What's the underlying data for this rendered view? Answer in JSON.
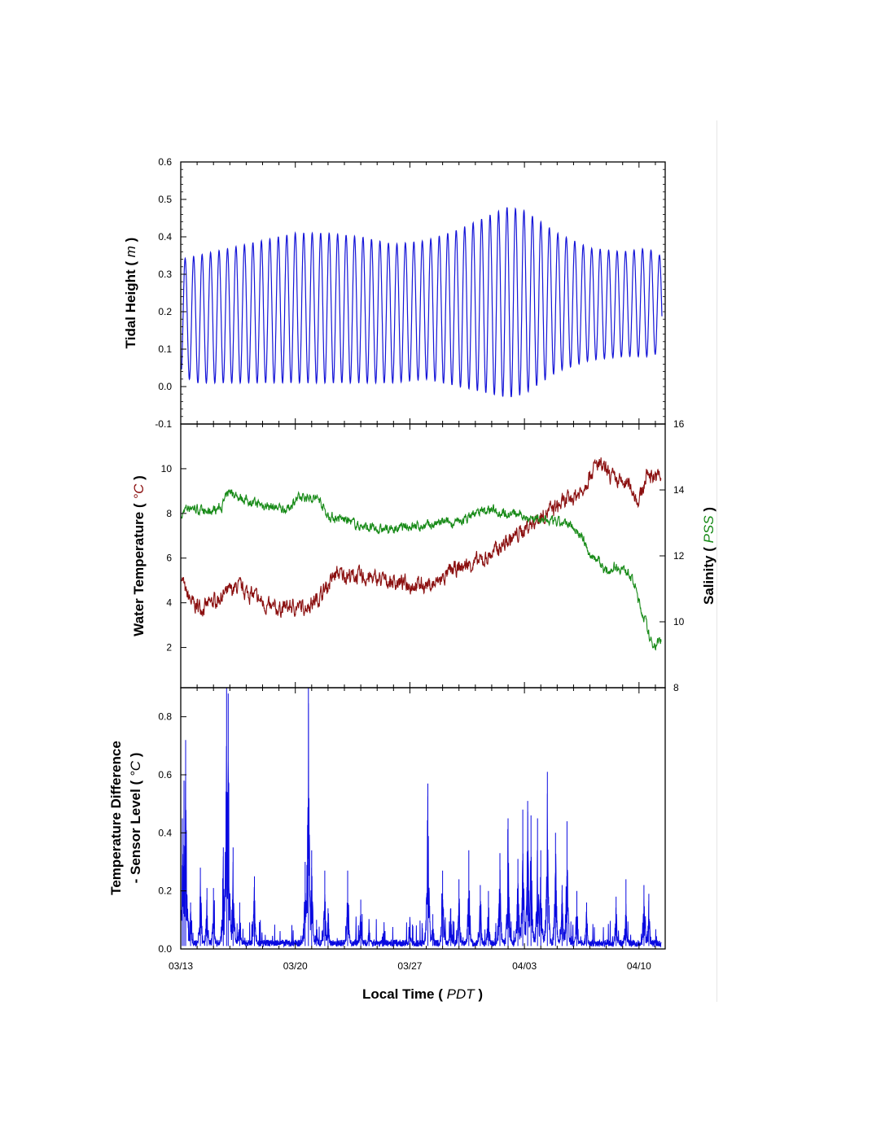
{
  "colors": {
    "tide": "#1414d8",
    "temperature": "#8b1010",
    "salinity": "#178a17",
    "temp_diff": "#0a0ae0",
    "axis": "#000000"
  },
  "x_axis": {
    "title": "Local Time",
    "unit": "PDT",
    "range_days": [
      0,
      29.6
    ],
    "ticks": [
      {
        "label": "03/13",
        "day": 0
      },
      {
        "label": "03/20",
        "day": 7
      },
      {
        "label": "03/27",
        "day": 14
      },
      {
        "label": "04/03",
        "day": 21
      },
      {
        "label": "04/10",
        "day": 28
      }
    ]
  },
  "chart_data": [
    {
      "type": "line",
      "panel": "top",
      "ylabel": "Tidal Height",
      "yunit": "m",
      "ylim": [
        -0.1,
        0.6
      ],
      "yticks": [
        "0.6",
        "0.5",
        "0.4",
        "0.3",
        "0.2",
        "0.1",
        "0.0",
        "-0.1"
      ],
      "ytick_values": [
        0.6,
        0.5,
        0.4,
        0.3,
        0.2,
        0.1,
        0.0,
        -0.1
      ],
      "series": [
        {
          "color_key": "tide",
          "oscillation": "semidiurnal",
          "period_hours": 12.42,
          "envelope_day": [
            0,
            1,
            3,
            5,
            7,
            9,
            11,
            13,
            15,
            17,
            18,
            19,
            20,
            21,
            22,
            23,
            25,
            27,
            28.5,
            29.3
          ],
          "envelope_max": [
            0.34,
            0.35,
            0.37,
            0.39,
            0.41,
            0.41,
            0.4,
            0.38,
            0.39,
            0.42,
            0.44,
            0.46,
            0.48,
            0.47,
            0.44,
            0.41,
            0.37,
            0.36,
            0.37,
            0.35
          ],
          "envelope_min": [
            0.03,
            0.01,
            0.01,
            0.01,
            0.01,
            0.01,
            0.01,
            0.01,
            0.02,
            0.0,
            -0.01,
            -0.02,
            -0.03,
            -0.02,
            0.01,
            0.04,
            0.07,
            0.08,
            0.08,
            0.09
          ]
        }
      ]
    },
    {
      "type": "line",
      "panel": "middle",
      "ylabel": "Water Temperature",
      "yunit": "°C",
      "ylim": [
        0.2,
        12
      ],
      "yticks": [
        "2",
        "4",
        "6",
        "8",
        "10"
      ],
      "ytick_values": [
        2,
        4,
        6,
        8,
        10
      ],
      "y2label": "Salinity",
      "y2unit": "PSS",
      "y2lim": [
        8,
        16
      ],
      "y2ticks": [
        "8",
        "10",
        "12",
        "14",
        "16"
      ],
      "y2tick_values": [
        8,
        10,
        12,
        14,
        16
      ],
      "series": [
        {
          "color_key": "temperature",
          "axis": "left",
          "x": [
            0,
            0.3,
            0.8,
            1.5,
            2.5,
            3.5,
            4.5,
            5.5,
            6.5,
            7.5,
            8.0,
            8.5,
            9.0,
            9.5,
            10.5,
            11.5,
            12.5,
            13.5,
            14.5,
            15.5,
            16.5,
            17.5,
            18.5,
            19.5,
            20.5,
            21.5,
            22.5,
            23.5,
            24.5,
            25.0,
            25.5,
            26.5,
            27.5,
            28.0,
            28.5,
            29.3
          ],
          "y": [
            5.5,
            4.4,
            3.9,
            3.8,
            4.3,
            4.7,
            4.3,
            3.7,
            3.8,
            3.8,
            4.0,
            4.3,
            4.8,
            5.3,
            5.2,
            5.1,
            5.0,
            4.9,
            4.8,
            4.8,
            5.4,
            5.7,
            5.9,
            6.5,
            7.0,
            7.6,
            8.1,
            8.5,
            9.0,
            9.8,
            10.2,
            9.5,
            9.2,
            8.5,
            9.8,
            9.6
          ]
        },
        {
          "color_key": "salinity",
          "axis": "right",
          "x": [
            0,
            0.2,
            0.6,
            1.5,
            2.5,
            3.0,
            3.5,
            4.5,
            5.5,
            6.5,
            7.0,
            7.8,
            8.5,
            9.0,
            10.0,
            11.0,
            12.0,
            13.0,
            14.0,
            15.0,
            16.0,
            17.0,
            18.0,
            19.0,
            20.0,
            21.0,
            22.0,
            23.0,
            24.0,
            24.6,
            25.0,
            25.5,
            26.0,
            26.5,
            27.0,
            27.4,
            27.8,
            28.1,
            28.4,
            28.7,
            29.0,
            29.3
          ],
          "y": [
            13.0,
            13.4,
            13.5,
            13.3,
            13.5,
            14.0,
            13.8,
            13.6,
            13.5,
            13.4,
            13.7,
            13.8,
            13.7,
            13.2,
            13.1,
            12.9,
            12.8,
            12.8,
            12.9,
            12.9,
            13.0,
            13.0,
            13.3,
            13.4,
            13.3,
            13.2,
            13.1,
            13.0,
            12.9,
            12.5,
            12.0,
            11.9,
            11.5,
            11.7,
            11.6,
            11.5,
            11.0,
            10.4,
            10.0,
            9.4,
            9.3,
            9.5
          ]
        }
      ]
    },
    {
      "type": "line",
      "panel": "bottom",
      "ylabel": "Temperature Difference",
      "ylabel_line2": "- Sensor Level",
      "yunit": "°C",
      "ylim": [
        0,
        0.9
      ],
      "yticks": [
        "0.0",
        "0.2",
        "0.4",
        "0.6",
        "0.8"
      ],
      "ytick_values": [
        0,
        0.2,
        0.4,
        0.6,
        0.8
      ],
      "series": [
        {
          "color_key": "temp_diff",
          "baseline": 0.02,
          "spikes_day": [
            0.1,
            0.2,
            0.3,
            0.6,
            1.2,
            1.6,
            2.0,
            2.6,
            2.8,
            2.9,
            3.2,
            3.6,
            4.5,
            7.6,
            7.8,
            8.0,
            8.3,
            8.8,
            9.0,
            10.2,
            11.0,
            11.5,
            14.0,
            15.1,
            15.4,
            16.0,
            16.5,
            17.0,
            17.6,
            18.3,
            18.8,
            19.5,
            20.0,
            20.6,
            20.9,
            21.2,
            21.4,
            21.8,
            22.0,
            22.4,
            22.9,
            23.3,
            23.6,
            24.2,
            24.8,
            26.6,
            27.2,
            28.3,
            28.6
          ],
          "spikes_val": [
            0.45,
            0.58,
            0.72,
            0.16,
            0.28,
            0.21,
            0.21,
            0.35,
            0.9,
            0.88,
            0.35,
            0.16,
            0.25,
            0.3,
            0.9,
            0.34,
            0.1,
            0.27,
            0.14,
            0.27,
            0.17,
            0.1,
            0.11,
            0.57,
            0.12,
            0.27,
            0.14,
            0.24,
            0.34,
            0.22,
            0.2,
            0.33,
            0.45,
            0.31,
            0.48,
            0.51,
            0.46,
            0.45,
            0.34,
            0.61,
            0.4,
            0.22,
            0.44,
            0.2,
            0.16,
            0.18,
            0.24,
            0.22,
            0.19
          ]
        }
      ]
    }
  ]
}
